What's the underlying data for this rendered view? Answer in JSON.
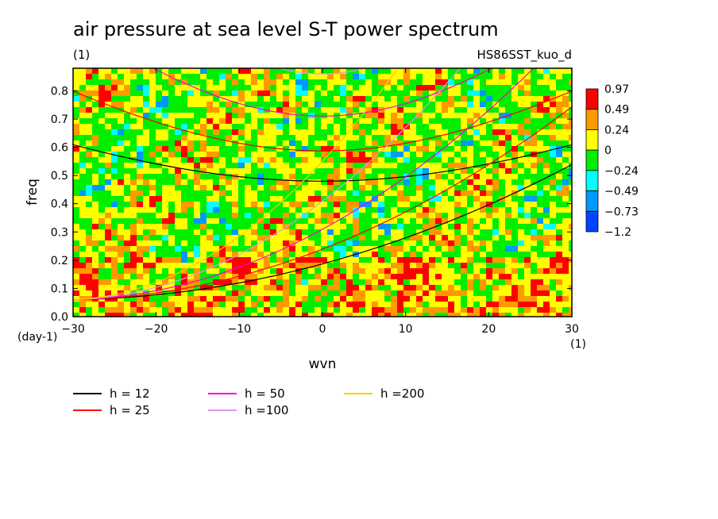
{
  "chart_data": {
    "type": "heatmap",
    "title": "air pressure at sea level S-T power spectrum",
    "subtitle": "(1)",
    "run_label": "HS86SST_kuo_d",
    "xlabel": "wvn",
    "ylabel": "freq",
    "x_unit": "(1)",
    "y_unit": "(day-1)",
    "xlim": [
      -30,
      30
    ],
    "ylim": [
      0,
      0.88
    ],
    "x_ticks": [
      -30,
      -20,
      -10,
      0,
      10,
      20,
      30
    ],
    "x_tick_labels": [
      "−30",
      "−20",
      "−10",
      "0",
      "10",
      "20",
      "30"
    ],
    "y_ticks": [
      0,
      0.1,
      0.2,
      0.3,
      0.4,
      0.5,
      0.6,
      0.7,
      0.8
    ],
    "y_tick_labels": [
      "0.0",
      "0.1",
      "0.2",
      "0.3",
      "0.4",
      "0.5",
      "0.6",
      "0.7",
      "0.8"
    ],
    "colorbar": {
      "labels": [
        "0.97",
        "0.49",
        "0.24",
        "0",
        "−0.24",
        "−0.49",
        "−0.73",
        "−1.2"
      ],
      "colors": [
        "#ff0000",
        "#ff9900",
        "#ffff00",
        "#00ee00",
        "#00ffff",
        "#0099ff",
        "#0044ff"
      ]
    },
    "dispersion_curves": [
      {
        "h": 12,
        "label": "h = 12",
        "color": "#000000"
      },
      {
        "h": 25,
        "label": "h = 25",
        "color": "#ff0000"
      },
      {
        "h": 50,
        "label": "h = 50",
        "color": "#ff00cc"
      },
      {
        "h": 100,
        "label": "h =100",
        "color": "#dd99ee"
      },
      {
        "h": 200,
        "label": "h =200",
        "color": "#ffcc00"
      }
    ]
  }
}
